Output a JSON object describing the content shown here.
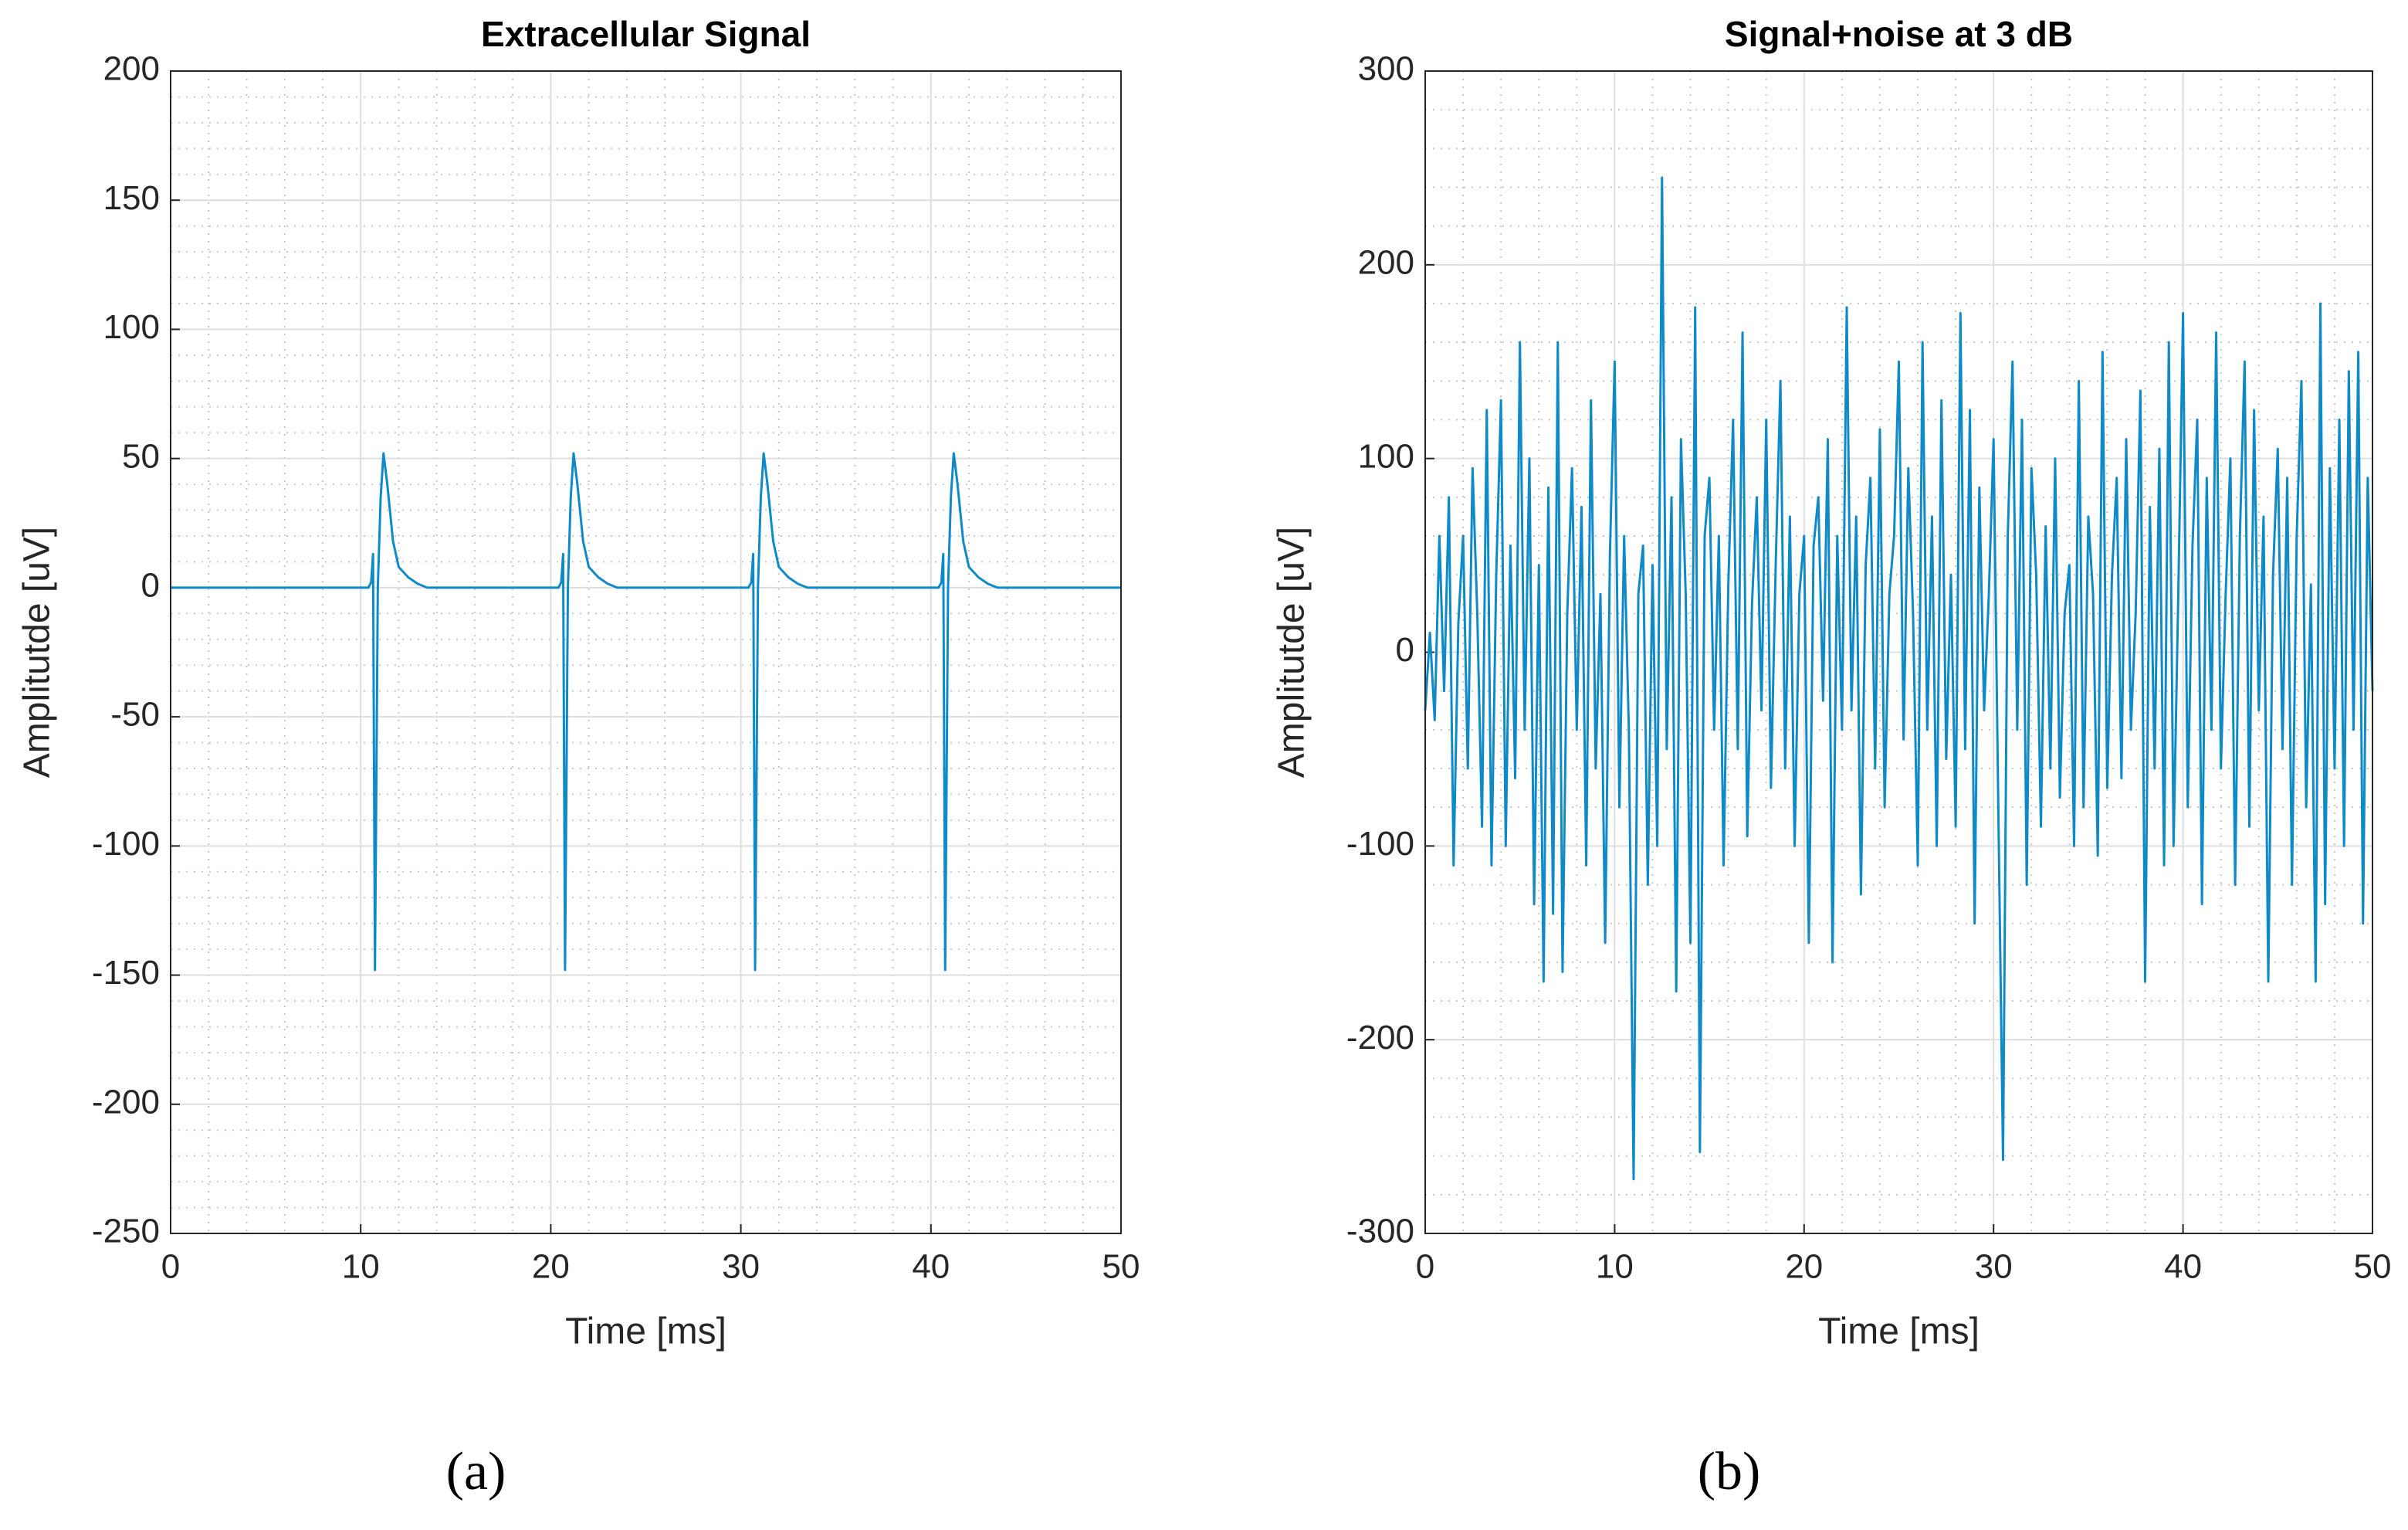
{
  "chart_data": [
    {
      "type": "line",
      "title": "Extracellular Signal",
      "xlabel": "Time [ms]",
      "ylabel": "Amplitutde [uV]",
      "caption": "(a)",
      "color": "#0e8ac9",
      "grid": true,
      "minor_grid": true,
      "xlim": [
        0,
        50
      ],
      "xticks": [
        0,
        10,
        20,
        30,
        40,
        50
      ],
      "ylim": [
        -250,
        200
      ],
      "yticks": [
        -250,
        -200,
        -150,
        -100,
        -50,
        0,
        50,
        100,
        150,
        200
      ],
      "x": [
        0,
        10.4,
        10.55,
        10.65,
        10.75,
        10.9,
        11.05,
        11.2,
        11.4,
        11.7,
        12.0,
        12.5,
        13.0,
        13.5,
        20.4,
        20.55,
        20.65,
        20.75,
        20.9,
        21.05,
        21.2,
        21.4,
        21.7,
        22.0,
        22.5,
        23.0,
        23.5,
        30.4,
        30.55,
        30.65,
        30.75,
        30.9,
        31.05,
        31.2,
        31.4,
        31.7,
        32.0,
        32.5,
        33.0,
        33.5,
        40.4,
        40.55,
        40.65,
        40.75,
        40.9,
        41.05,
        41.2,
        41.4,
        41.7,
        42.0,
        42.5,
        43.0,
        43.5,
        50
      ],
      "values": [
        0,
        0,
        2,
        13,
        -148,
        0,
        35,
        52,
        40,
        18,
        8,
        4,
        1.5,
        0,
        0,
        2,
        13,
        -148,
        0,
        35,
        52,
        40,
        18,
        8,
        4,
        1.5,
        0,
        0,
        2,
        13,
        -148,
        0,
        35,
        52,
        40,
        18,
        8,
        4,
        1.5,
        0,
        0,
        2,
        13,
        -148,
        0,
        35,
        52,
        40,
        18,
        8,
        4,
        1.5,
        0,
        0
      ]
    },
    {
      "type": "line",
      "title": "Signal+noise at 3 dB",
      "xlabel": "Time [ms]",
      "ylabel": "Amplitutde [uV]",
      "caption": "(b)",
      "color": "#0e8ac9",
      "grid": true,
      "minor_grid": true,
      "xlim": [
        0,
        50
      ],
      "xticks": [
        0,
        10,
        20,
        30,
        40,
        50
      ],
      "ylim": [
        -300,
        300
      ],
      "yticks": [
        -300,
        -200,
        -100,
        0,
        100,
        200,
        300
      ],
      "x": [
        0,
        0.25,
        0.5,
        0.75,
        1,
        1.25,
        1.5,
        1.75,
        2,
        2.25,
        2.5,
        2.75,
        3,
        3.25,
        3.5,
        3.75,
        4,
        4.25,
        4.5,
        4.75,
        5,
        5.25,
        5.5,
        5.75,
        6,
        6.25,
        6.5,
        6.75,
        7,
        7.25,
        7.5,
        7.75,
        8,
        8.25,
        8.5,
        8.75,
        9,
        9.25,
        9.5,
        9.75,
        10,
        10.25,
        10.5,
        10.75,
        11,
        11.25,
        11.5,
        11.75,
        12,
        12.25,
        12.5,
        12.75,
        13,
        13.25,
        13.5,
        13.75,
        14,
        14.25,
        14.5,
        14.75,
        15,
        15.25,
        15.5,
        15.75,
        16,
        16.25,
        16.5,
        16.75,
        17,
        17.25,
        17.5,
        17.75,
        18,
        18.25,
        18.5,
        18.75,
        19,
        19.25,
        19.5,
        19.75,
        20,
        20.25,
        20.5,
        20.75,
        21,
        21.25,
        21.5,
        21.75,
        22,
        22.25,
        22.5,
        22.75,
        23,
        23.25,
        23.5,
        23.75,
        24,
        24.25,
        24.5,
        24.75,
        25,
        25.25,
        25.5,
        25.75,
        26,
        26.25,
        26.5,
        26.75,
        27,
        27.25,
        27.5,
        27.75,
        28,
        28.25,
        28.5,
        28.75,
        29,
        29.25,
        29.5,
        29.75,
        30,
        30.25,
        30.5,
        30.75,
        31,
        31.25,
        31.5,
        31.75,
        32,
        32.25,
        32.5,
        32.75,
        33,
        33.25,
        33.5,
        33.75,
        34,
        34.25,
        34.5,
        34.75,
        35,
        35.25,
        35.5,
        35.75,
        36,
        36.25,
        36.5,
        36.75,
        37,
        37.25,
        37.5,
        37.75,
        38,
        38.25,
        38.5,
        38.75,
        39,
        39.25,
        39.5,
        39.75,
        40,
        40.25,
        40.5,
        40.75,
        41,
        41.25,
        41.5,
        41.75,
        42,
        42.25,
        42.5,
        42.75,
        43,
        43.25,
        43.5,
        43.75,
        44,
        44.25,
        44.5,
        44.75,
        45,
        45.25,
        45.5,
        45.75,
        46,
        46.25,
        46.5,
        46.75,
        47,
        47.25,
        47.5,
        47.75,
        48,
        48.25,
        48.5,
        48.75,
        49,
        49.25,
        49.5,
        49.75,
        50
      ],
      "values": [
        -30,
        10,
        -35,
        60,
        -20,
        80,
        -110,
        15,
        60,
        -60,
        95,
        20,
        -90,
        125,
        -110,
        40,
        130,
        -100,
        55,
        -65,
        160,
        -40,
        100,
        -130,
        45,
        -170,
        85,
        -135,
        160,
        -165,
        20,
        95,
        -40,
        75,
        -110,
        130,
        -60,
        30,
        -150,
        50,
        150,
        -80,
        60,
        -40,
        -272,
        30,
        55,
        -120,
        45,
        -100,
        245,
        -50,
        80,
        -175,
        110,
        30,
        -150,
        178,
        -258,
        60,
        90,
        -40,
        60,
        -110,
        35,
        120,
        -50,
        165,
        -95,
        25,
        80,
        -30,
        120,
        -70,
        45,
        140,
        -60,
        70,
        -100,
        30,
        60,
        -150,
        55,
        80,
        -25,
        110,
        -160,
        60,
        -40,
        178,
        -30,
        70,
        -125,
        45,
        90,
        -60,
        115,
        -80,
        30,
        60,
        150,
        -45,
        95,
        20,
        -110,
        160,
        -40,
        70,
        -100,
        130,
        -55,
        40,
        -90,
        175,
        -50,
        125,
        -140,
        85,
        -30,
        30,
        110,
        -80,
        -262,
        60,
        150,
        -40,
        120,
        -120,
        95,
        40,
        -90,
        65,
        -60,
        100,
        -75,
        20,
        45,
        -100,
        140,
        -80,
        70,
        30,
        -105,
        155,
        -70,
        40,
        90,
        -65,
        110,
        -40,
        20,
        135,
        -170,
        75,
        -60,
        105,
        -110,
        160,
        -100,
        30,
        175,
        -80,
        55,
        120,
        -130,
        90,
        -40,
        165,
        -60,
        30,
        100,
        -120,
        60,
        150,
        -90,
        125,
        -30,
        70,
        -170,
        40,
        105,
        -50,
        90,
        -120,
        60,
        140,
        -80,
        35,
        -170,
        180,
        -130,
        95,
        -60,
        120,
        -100,
        145,
        -40,
        155,
        -140,
        90,
        -20
      ]
    }
  ]
}
